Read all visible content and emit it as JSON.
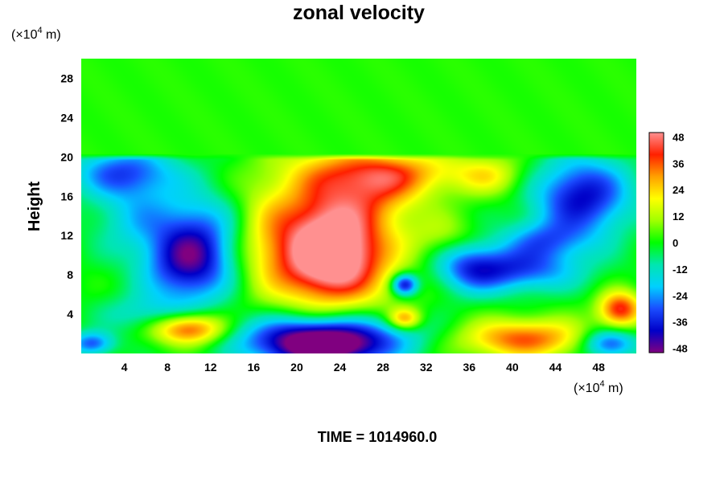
{
  "chart_data": {
    "type": "heatmap",
    "title": "zonal velocity",
    "ylabel": "Height",
    "xlabel": "",
    "y_unit": "(×10",
    "x_unit": "(×10",
    "unit_exp": "4",
    "unit_m": " m)",
    "x_ticks": [
      4,
      8,
      12,
      16,
      20,
      24,
      28,
      32,
      36,
      40,
      44,
      48
    ],
    "y_ticks": [
      4,
      8,
      12,
      16,
      20,
      24,
      28
    ],
    "xlim": [
      0,
      51.5
    ],
    "ylim": [
      0,
      30
    ],
    "colorbar": {
      "ticks": [
        48,
        36,
        24,
        12,
        0,
        -12,
        -24,
        -36,
        -48
      ],
      "range": [
        -50,
        50
      ],
      "colors": [
        "#800080",
        "#0000c8",
        "#1a4dff",
        "#00d0ff",
        "#00e6b0",
        "#00ff00",
        "#a0ff00",
        "#ffff00",
        "#ffa000",
        "#ff2000",
        "#ff9090"
      ]
    },
    "field": {
      "background": 2,
      "top_of_disturbance": 20,
      "blobs": [
        {
          "x": 23,
          "y": 9.5,
          "rx": 5,
          "ry": 4.5,
          "v": 48
        },
        {
          "x": 23,
          "y": 15,
          "rx": 5,
          "ry": 6,
          "v": 26
        },
        {
          "x": 28,
          "y": 17,
          "rx": 4,
          "ry": 3,
          "v": 18
        },
        {
          "x": 30,
          "y": 18.5,
          "rx": 8,
          "ry": 2.2,
          "v": 20
        },
        {
          "x": 25,
          "y": 11,
          "rx": 8,
          "ry": 8,
          "v": 10
        },
        {
          "x": 10,
          "y": 9,
          "rx": 4,
          "ry": 4,
          "v": -40
        },
        {
          "x": 11,
          "y": 13,
          "rx": 4,
          "ry": 4,
          "v": -18
        },
        {
          "x": 46.5,
          "y": 16,
          "rx": 4.5,
          "ry": 4,
          "v": -40
        },
        {
          "x": 40,
          "y": 8.5,
          "rx": 6,
          "ry": 2.2,
          "v": -32
        },
        {
          "x": 43,
          "y": 11.5,
          "rx": 4,
          "ry": 2,
          "v": -22
        },
        {
          "x": 36,
          "y": 9,
          "rx": 3,
          "ry": 3,
          "v": -18
        },
        {
          "x": 30,
          "y": 7,
          "rx": 1.2,
          "ry": 1.1,
          "v": -42
        },
        {
          "x": 30,
          "y": 3.5,
          "rx": 1.5,
          "ry": 1.1,
          "v": 30
        },
        {
          "x": 22.5,
          "y": 0.5,
          "rx": 6,
          "ry": 2.2,
          "v": -48
        },
        {
          "x": 22.5,
          "y": 2,
          "rx": 9,
          "ry": 2.2,
          "v": -30
        },
        {
          "x": 10,
          "y": 2.5,
          "rx": 3.5,
          "ry": 1.6,
          "v": 44
        },
        {
          "x": 41,
          "y": 1.5,
          "rx": 6,
          "ry": 2,
          "v": 36
        },
        {
          "x": 50,
          "y": 4.5,
          "rx": 2,
          "ry": 1.8,
          "v": 42
        },
        {
          "x": 4,
          "y": 18.5,
          "rx": 5,
          "ry": 2.5,
          "v": -28
        },
        {
          "x": 5,
          "y": 14,
          "rx": 4,
          "ry": 4,
          "v": -16
        },
        {
          "x": 49,
          "y": 1,
          "rx": 2.5,
          "ry": 1.5,
          "v": -35
        },
        {
          "x": 1,
          "y": 1,
          "rx": 2,
          "ry": 1.2,
          "v": -30
        },
        {
          "x": 6,
          "y": 4,
          "rx": 4,
          "ry": 2,
          "v": -14
        },
        {
          "x": 17,
          "y": 12,
          "rx": 3,
          "ry": 6,
          "v": 12
        },
        {
          "x": 38,
          "y": 18,
          "rx": 3,
          "ry": 2,
          "v": 14
        },
        {
          "x": 34,
          "y": 12,
          "rx": 3,
          "ry": 2,
          "v": 10
        }
      ]
    }
  },
  "footer": {
    "time_label": "TIME = 1014960.0"
  }
}
